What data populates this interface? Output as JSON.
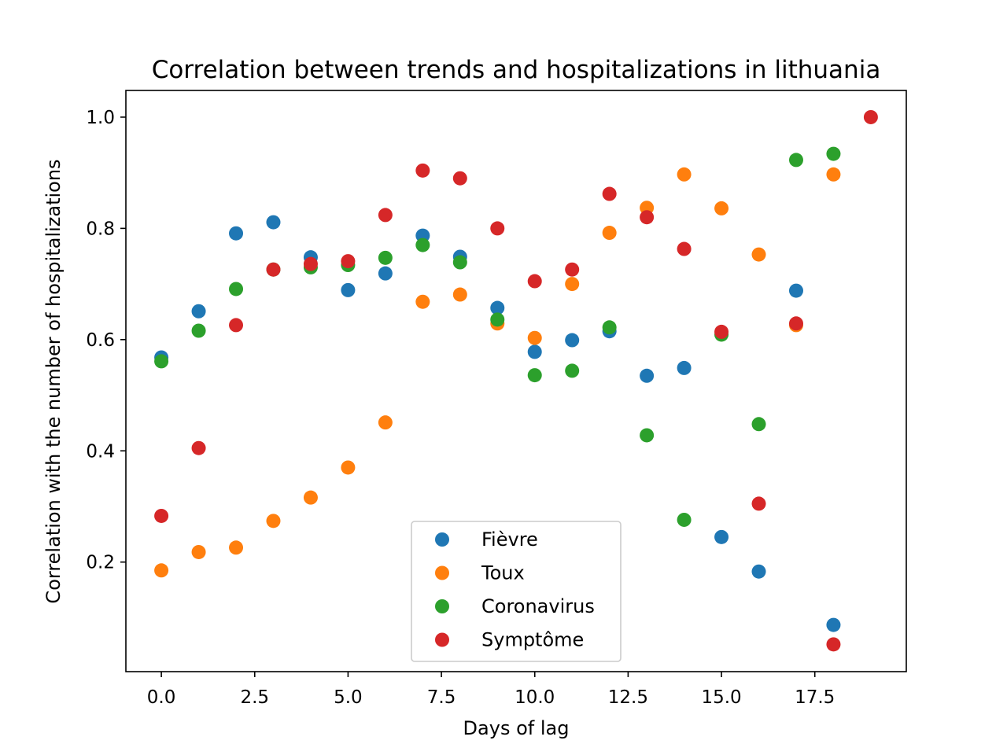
{
  "chart_data": {
    "type": "scatter",
    "title": "Correlation between trends and hospitalizations in lithuania",
    "xlabel": "Days of lag",
    "ylabel": "Correlation with the number of hospitalizations",
    "xlim": [
      -0.95,
      19.95
    ],
    "ylim": [
      0.003,
      1.048
    ],
    "xticks": [
      0.0,
      2.5,
      5.0,
      7.5,
      10.0,
      12.5,
      15.0,
      17.5
    ],
    "xtick_labels": [
      "0.0",
      "2.5",
      "5.0",
      "7.5",
      "10.0",
      "12.5",
      "15.0",
      "17.5"
    ],
    "yticks": [
      0.2,
      0.4,
      0.6,
      0.8,
      1.0
    ],
    "ytick_labels": [
      "0.2",
      "0.4",
      "0.6",
      "0.8",
      "1.0"
    ],
    "grid": false,
    "legend_position": "lower center",
    "series": [
      {
        "name": "Fièvre",
        "color": "#1f77b4",
        "x": [
          0,
          1,
          2,
          3,
          4,
          5,
          6,
          7,
          8,
          9,
          10,
          11,
          12,
          13,
          14,
          15,
          16,
          17,
          18
        ],
        "y": [
          0.568,
          0.651,
          0.791,
          0.811,
          0.748,
          0.689,
          0.719,
          0.787,
          0.749,
          0.657,
          0.578,
          0.599,
          0.615,
          0.535,
          0.549,
          0.245,
          0.183,
          0.688,
          0.087
        ]
      },
      {
        "name": "Toux",
        "color": "#ff7f0e",
        "x": [
          0,
          1,
          2,
          3,
          4,
          5,
          6,
          7,
          8,
          9,
          10,
          11,
          12,
          13,
          14,
          15,
          16,
          17,
          18
        ],
        "y": [
          0.185,
          0.218,
          0.226,
          0.274,
          0.316,
          0.37,
          0.451,
          0.668,
          0.681,
          0.629,
          0.603,
          0.7,
          0.792,
          0.837,
          0.897,
          0.836,
          0.753,
          0.626,
          0.897
        ]
      },
      {
        "name": "Coronavirus",
        "color": "#2ca02c",
        "x": [
          0,
          1,
          2,
          3,
          4,
          5,
          6,
          7,
          8,
          9,
          10,
          11,
          12,
          13,
          14,
          15,
          16,
          17,
          18
        ],
        "y": [
          0.561,
          0.616,
          0.691,
          0.726,
          0.73,
          0.734,
          0.747,
          0.77,
          0.739,
          0.636,
          0.536,
          0.544,
          0.622,
          0.428,
          0.276,
          0.609,
          0.448,
          0.923,
          0.934
        ]
      },
      {
        "name": "Symptôme",
        "color": "#d62728",
        "x": [
          0,
          1,
          2,
          3,
          4,
          5,
          6,
          7,
          8,
          9,
          10,
          11,
          12,
          13,
          14,
          15,
          16,
          17,
          18,
          19
        ],
        "y": [
          0.283,
          0.405,
          0.626,
          0.726,
          0.736,
          0.741,
          0.824,
          0.904,
          0.89,
          0.8,
          0.705,
          0.726,
          0.862,
          0.82,
          0.763,
          0.614,
          0.305,
          0.629,
          0.052,
          1.0
        ]
      }
    ]
  }
}
